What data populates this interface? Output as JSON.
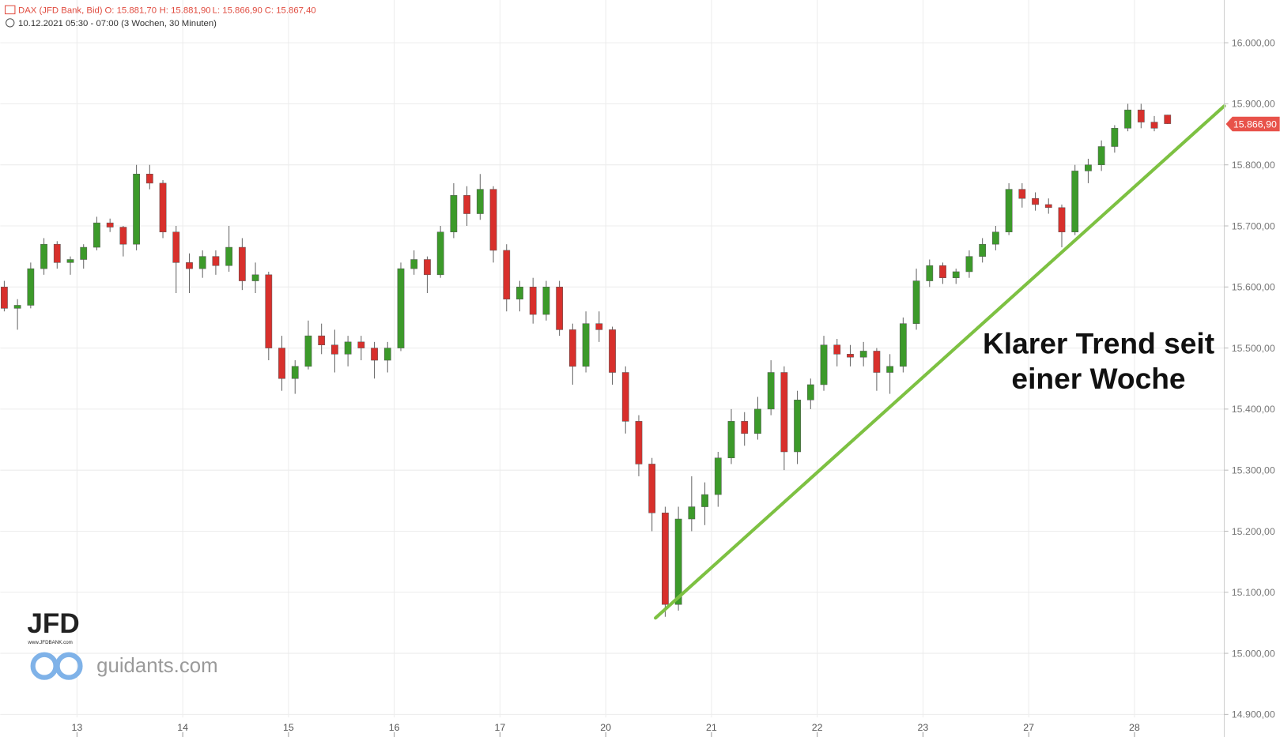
{
  "chart_data": {
    "type": "candlestick",
    "instrument": "DAX (JFD Bank, Bid)",
    "ohlc_labels": [
      "O: 15.881,70",
      "H: 15.881,90",
      "L: 15.866,90",
      "C: 15.867,40"
    ],
    "period": "10.12.2021 05:30 - 07:00",
    "range_note": "(3 Wochen, 30 Minuten)",
    "annotation": [
      "Klarer Trend seit",
      "einer Woche"
    ],
    "logo": "JFD",
    "logo_url": "www.JFDBANK.com",
    "watermark": "guidants.com",
    "up_color": "#3c9a2a",
    "down_color": "#d8302c",
    "trend_color": "#7dc142",
    "grid": true,
    "last_price": {
      "value": 15866.9,
      "label": "15.866,90"
    },
    "ylim": [
      14895,
      16070
    ],
    "yticks": [
      {
        "value": 14900,
        "label": "14.900,00"
      },
      {
        "value": 15000,
        "label": "15.000,00"
      },
      {
        "value": 15100,
        "label": "15.100,00"
      },
      {
        "value": 15200,
        "label": "15.200,00"
      },
      {
        "value": 15300,
        "label": "15.300,00"
      },
      {
        "value": 15400,
        "label": "15.400,00"
      },
      {
        "value": 15500,
        "label": "15.500,00"
      },
      {
        "value": 15600,
        "label": "15.600,00"
      },
      {
        "value": 15700,
        "label": "15.700,00"
      },
      {
        "value": 15800,
        "label": "15.800,00"
      },
      {
        "value": 15900,
        "label": "15.900,00"
      },
      {
        "value": 16000,
        "label": "16.000,00"
      }
    ],
    "categories": [
      null,
      null,
      null,
      null,
      null,
      null,
      "13",
      null,
      null,
      null,
      null,
      null,
      null,
      null,
      "14",
      null,
      null,
      null,
      null,
      null,
      null,
      null,
      "15",
      null,
      null,
      null,
      null,
      null,
      null,
      null,
      "16",
      null,
      null,
      null,
      null,
      null,
      null,
      null,
      "17",
      null,
      null,
      null,
      null,
      null,
      null,
      null,
      "20",
      null,
      null,
      null,
      null,
      null,
      null,
      null,
      "21",
      null,
      null,
      null,
      null,
      null,
      null,
      null,
      "22",
      null,
      null,
      null,
      null,
      null,
      null,
      null,
      "23",
      null,
      null,
      null,
      null,
      null,
      null,
      null,
      "27",
      null,
      null,
      null,
      null,
      null,
      null,
      null,
      "28",
      null,
      null
    ],
    "open": [
      15600,
      15565,
      15570,
      15630,
      15670,
      15640,
      15645,
      15665,
      15705,
      15698,
      15670,
      15785,
      15770,
      15690,
      15640,
      15630,
      15650,
      15635,
      15665,
      15610,
      15620,
      15500,
      15450,
      15470,
      15520,
      15505,
      15490,
      15510,
      15500,
      15480,
      15500,
      15630,
      15645,
      15620,
      15690,
      15750,
      15720,
      15760,
      15660,
      15580,
      15600,
      15555,
      15600,
      15530,
      15470,
      15540,
      15530,
      15460,
      15380,
      15310,
      15230,
      15080,
      15220,
      15240,
      15260,
      15320,
      15380,
      15360,
      15400,
      15460,
      15330,
      15415,
      15440,
      15505,
      15490,
      15485,
      15495,
      15460,
      15470,
      15540,
      15610,
      15635,
      15615,
      15625,
      15650,
      15670,
      15690,
      15760,
      15745,
      15735,
      15730,
      15690,
      15790,
      15800,
      15830,
      15860,
      15890,
      15870,
      15881.7
    ],
    "high": [
      15610,
      15580,
      15640,
      15680,
      15675,
      15650,
      15670,
      15715,
      15712,
      15700,
      15800,
      15800,
      15775,
      15700,
      15655,
      15660,
      15660,
      15700,
      15680,
      15640,
      15625,
      15520,
      15480,
      15545,
      15540,
      15530,
      15520,
      15520,
      15510,
      15510,
      15640,
      15660,
      15650,
      15700,
      15770,
      15765,
      15785,
      15765,
      15670,
      15610,
      15615,
      15610,
      15610,
      15540,
      15560,
      15560,
      15535,
      15470,
      15390,
      15320,
      15240,
      15240,
      15290,
      15280,
      15330,
      15400,
      15395,
      15420,
      15480,
      15470,
      15430,
      15450,
      15520,
      15515,
      15505,
      15510,
      15500,
      15490,
      15550,
      15630,
      15645,
      15640,
      15630,
      15660,
      15680,
      15700,
      15770,
      15770,
      15755,
      15745,
      15735,
      15800,
      15810,
      15840,
      15865,
      15900,
      15900,
      15880,
      15881.9
    ],
    "low": [
      15560,
      15530,
      15565,
      15620,
      15630,
      15620,
      15630,
      15660,
      15690,
      15650,
      15660,
      15760,
      15680,
      15590,
      15590,
      15615,
      15620,
      15625,
      15595,
      15590,
      15480,
      15430,
      15425,
      15465,
      15490,
      15460,
      15470,
      15480,
      15450,
      15460,
      15495,
      15620,
      15590,
      15615,
      15680,
      15700,
      15710,
      15640,
      15560,
      15560,
      15540,
      15545,
      15520,
      15440,
      15460,
      15510,
      15440,
      15360,
      15290,
      15200,
      15060,
      15070,
      15200,
      15210,
      15240,
      15310,
      15340,
      15350,
      15390,
      15300,
      15310,
      15400,
      15430,
      15470,
      15470,
      15470,
      15430,
      15425,
      15460,
      15530,
      15600,
      15605,
      15605,
      15615,
      15640,
      15660,
      15685,
      15730,
      15725,
      15720,
      15665,
      15685,
      15770,
      15790,
      15820,
      15855,
      15860,
      15855,
      15866.9
    ],
    "close": [
      15565,
      15570,
      15630,
      15670,
      15640,
      15645,
      15665,
      15705,
      15698,
      15670,
      15785,
      15770,
      15690,
      15640,
      15630,
      15650,
      15635,
      15665,
      15610,
      15620,
      15500,
      15450,
      15470,
      15520,
      15505,
      15490,
      15510,
      15500,
      15480,
      15500,
      15630,
      15645,
      15620,
      15690,
      15750,
      15720,
      15760,
      15660,
      15580,
      15600,
      15555,
      15600,
      15530,
      15470,
      15540,
      15530,
      15460,
      15380,
      15310,
      15230,
      15080,
      15220,
      15240,
      15260,
      15320,
      15380,
      15360,
      15400,
      15460,
      15330,
      15415,
      15440,
      15505,
      15490,
      15485,
      15495,
      15460,
      15470,
      15540,
      15610,
      15635,
      15615,
      15625,
      15650,
      15670,
      15690,
      15760,
      15745,
      15735,
      15730,
      15690,
      15790,
      15800,
      15830,
      15860,
      15890,
      15870,
      15860,
      15867.4
    ]
  }
}
